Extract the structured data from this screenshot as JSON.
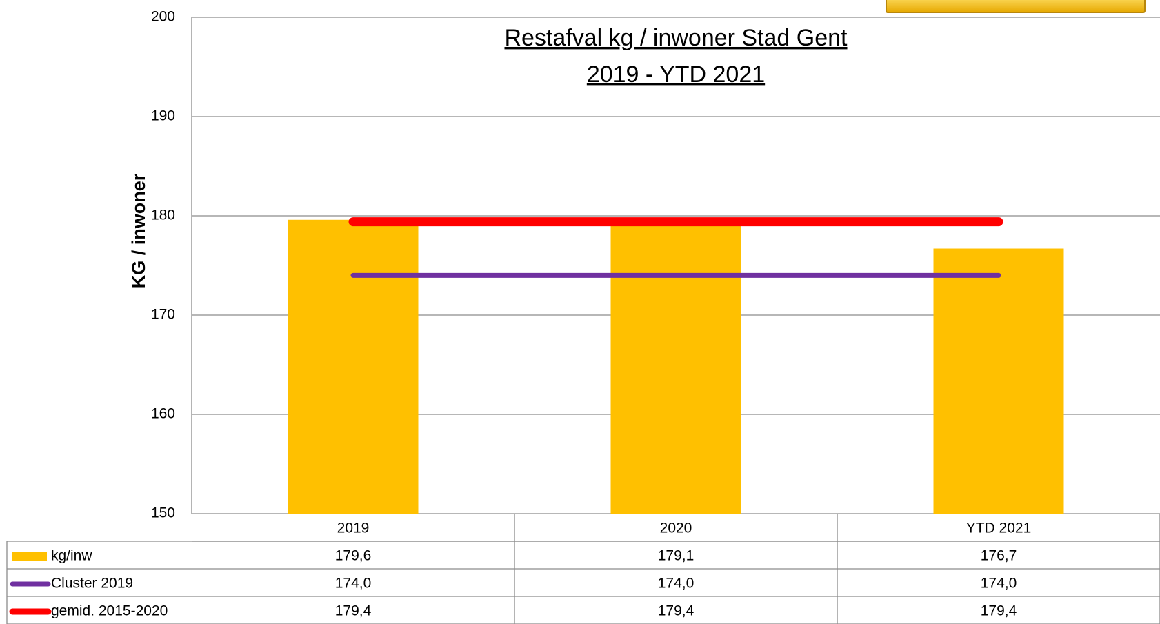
{
  "chart_data": {
    "type": "bar",
    "title": "Restafval kg / inwoner Stad Gent",
    "subtitle": "2019 - YTD 2021",
    "y_label": "KG / inwoner",
    "categories": [
      "2019",
      "2020",
      "YTD 2021"
    ],
    "series": [
      {
        "name": "kg/inw",
        "type": "bar",
        "color": "#ffc000",
        "values": [
          179.6,
          179.1,
          176.7
        ],
        "value_labels": [
          "179,6",
          "179,1",
          "176,7"
        ]
      },
      {
        "name": "Cluster 2019",
        "type": "line",
        "color": "#7030a0",
        "values": [
          174.0,
          174.0,
          174.0
        ],
        "value_labels": [
          "174,0",
          "174,0",
          "174,0"
        ]
      },
      {
        "name": "gemid. 2015-2020",
        "type": "line",
        "color": "#ff0000",
        "values": [
          179.4,
          179.4,
          179.4
        ],
        "value_labels": [
          "179,4",
          "179,4",
          "179,4"
        ]
      }
    ],
    "ylim": [
      150,
      200
    ],
    "yticks": [
      150,
      160,
      170,
      180,
      190,
      200
    ],
    "grid": true
  }
}
